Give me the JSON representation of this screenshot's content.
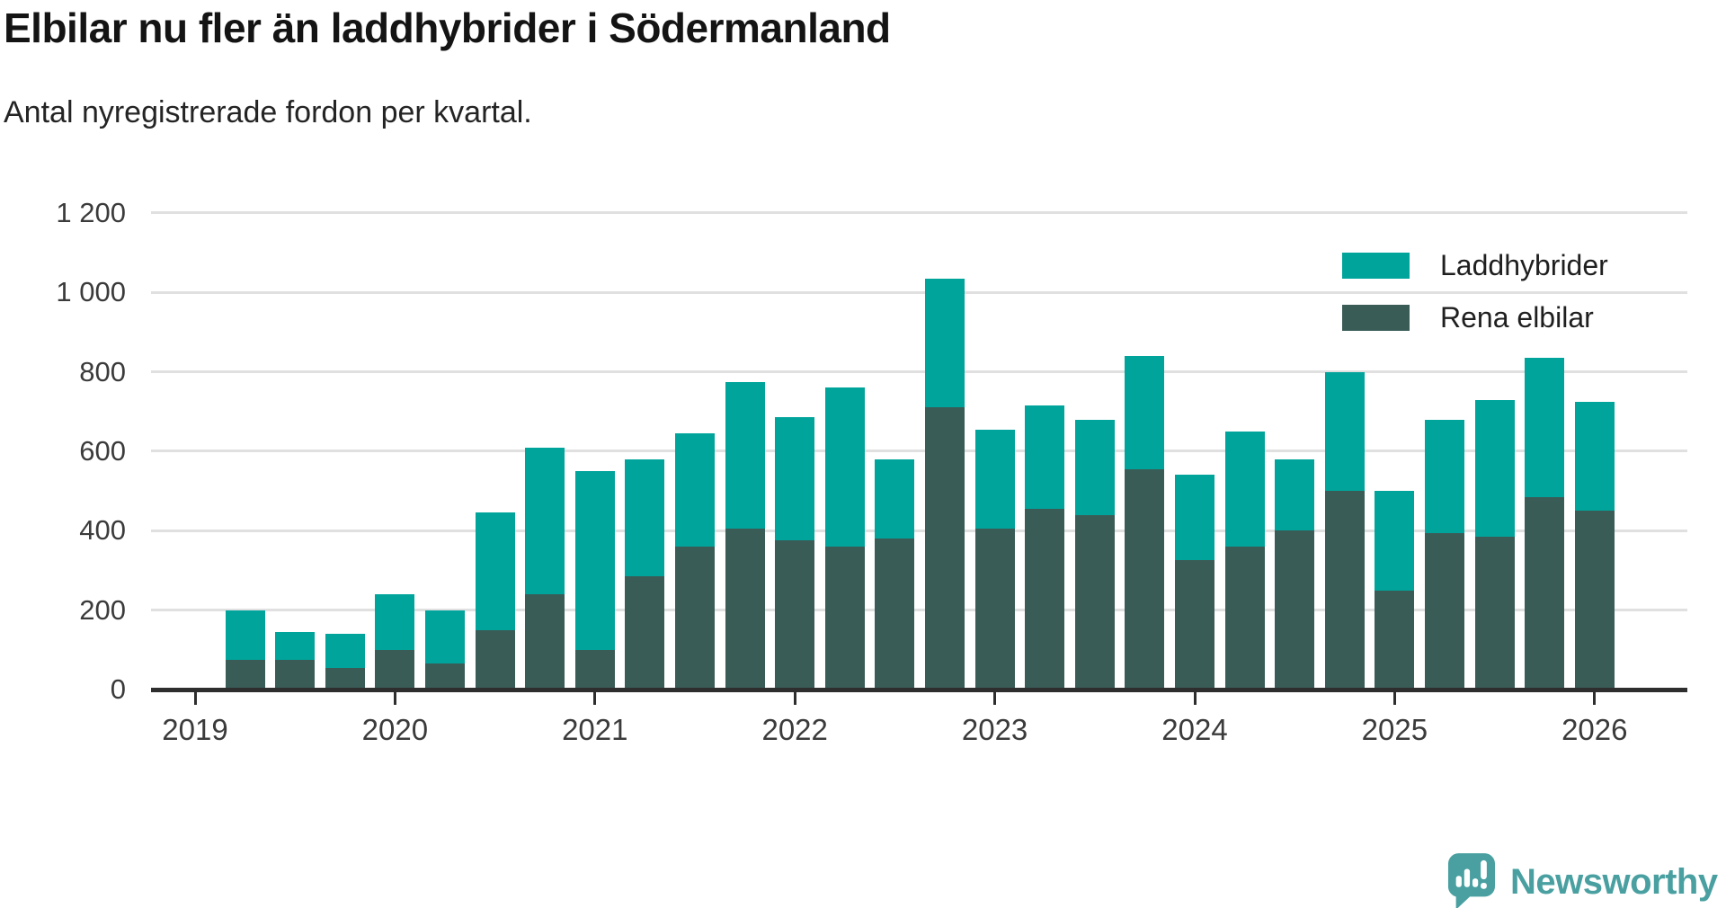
{
  "title": "Elbilar nu fler än laddhybrider i Södermanland",
  "subtitle": "Antal nyregistrerade fordon per kvartal.",
  "colors": {
    "laddhybrider": "#00a49b",
    "rena_elbilar": "#3a5c57",
    "axis": "#2e2e2e",
    "grid": "#e0e0e0",
    "tick_text": "#3b3b3b",
    "brand": "#4aa0a1"
  },
  "legend": [
    {
      "label": "Laddhybrider",
      "color_key": "laddhybrider"
    },
    {
      "label": "Rena elbilar",
      "color_key": "rena_elbilar"
    }
  ],
  "footer": {
    "brand": "Newsworthy"
  },
  "chart_data": {
    "type": "bar",
    "stacked": true,
    "title": "Elbilar nu fler än laddhybrider i Södermanland",
    "subtitle": "Antal nyregistrerade fordon per kvartal.",
    "x_unit": "quarter",
    "categories": [
      "2019 Q1",
      "2019 Q2",
      "2019 Q3",
      "2019 Q4",
      "2020 Q1",
      "2020 Q2",
      "2020 Q3",
      "2020 Q4",
      "2021 Q1",
      "2021 Q2",
      "2021 Q3",
      "2021 Q4",
      "2022 Q1",
      "2022 Q2",
      "2022 Q3",
      "2022 Q4",
      "2023 Q1",
      "2023 Q2",
      "2023 Q3",
      "2023 Q4",
      "2024 Q1",
      "2024 Q2",
      "2024 Q3",
      "2024 Q4",
      "2025 Q1",
      "2025 Q2",
      "2025 Q3",
      "2025 Q4"
    ],
    "series": [
      {
        "name": "Laddhybrider",
        "values": [
          125,
          70,
          85,
          140,
          135,
          295,
          370,
          450,
          295,
          285,
          370,
          310,
          400,
          200,
          325,
          250,
          260,
          240,
          285,
          215,
          290,
          180,
          300,
          250,
          285,
          345,
          350,
          275
        ]
      },
      {
        "name": "Rena elbilar",
        "values": [
          75,
          75,
          55,
          100,
          65,
          150,
          240,
          100,
          285,
          360,
          405,
          375,
          360,
          380,
          710,
          405,
          455,
          440,
          555,
          325,
          360,
          400,
          500,
          250,
          395,
          385,
          485,
          450
        ]
      }
    ],
    "totals": [
      200,
      145,
      140,
      240,
      200,
      445,
      610,
      550,
      580,
      645,
      775,
      685,
      760,
      580,
      1035,
      655,
      715,
      680,
      840,
      540,
      650,
      580,
      800,
      500,
      680,
      730,
      835,
      725
    ],
    "ylim": [
      0,
      1200
    ],
    "yticks": [
      {
        "value": 0,
        "label": "0"
      },
      {
        "value": 200,
        "label": "200"
      },
      {
        "value": 400,
        "label": "400"
      },
      {
        "value": 600,
        "label": "600"
      },
      {
        "value": 800,
        "label": "800"
      },
      {
        "value": 1000,
        "label": "1 000"
      },
      {
        "value": 1200,
        "label": "1 200"
      }
    ],
    "xticks": [
      "2019",
      "2020",
      "2021",
      "2022",
      "2023",
      "2024",
      "2025",
      "2026"
    ],
    "grid": "horizontal",
    "legend_position": "top-right"
  }
}
